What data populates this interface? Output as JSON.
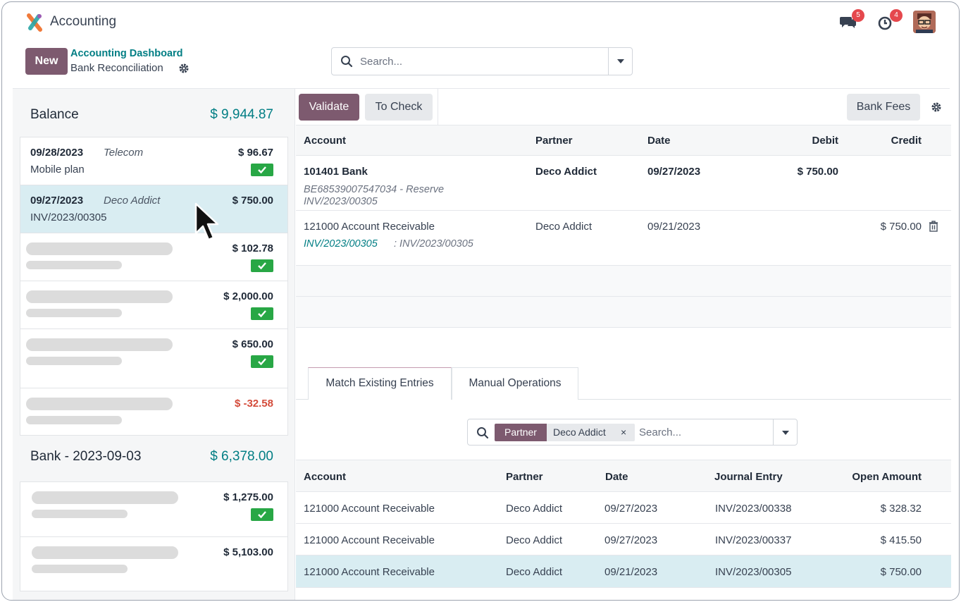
{
  "app": {
    "name": "Accounting",
    "messages_count": "5",
    "activities_count": "4",
    "accent_color": "#7d5a6f",
    "link_color": "#017e84"
  },
  "control_panel": {
    "new_label": "New",
    "breadcrumb_parent": "Accounting Dashboard",
    "breadcrumb_current": "Bank Reconciliation",
    "search_placeholder": "Search..."
  },
  "left": {
    "groups": [
      {
        "title": "Balance",
        "amount": "$ 9,944.87",
        "lines": [
          {
            "date": "09/28/2023",
            "partner": "Telecom",
            "label": "Mobile plan",
            "amount": "$ 96.67",
            "checked": true,
            "selected": false
          },
          {
            "date": "09/27/2023",
            "partner": "Deco Addict",
            "label": "INV/2023/00305",
            "amount": "$ 750.00",
            "checked": false,
            "selected": true
          },
          {
            "amount": "$ 102.78",
            "checked": true,
            "placeholder": true
          },
          {
            "amount": "$ 2,000.00",
            "checked": true,
            "placeholder": true
          },
          {
            "amount": "$ 650.00",
            "checked": true,
            "placeholder": true
          },
          {
            "amount": "$ -32.58",
            "checked": false,
            "placeholder": true,
            "negative": true
          }
        ]
      },
      {
        "title": "Bank - 2023-09-03",
        "amount": "$ 6,378.00",
        "lines": [
          {
            "amount": "$ 1,275.00",
            "checked": true,
            "placeholder": true
          },
          {
            "amount": "$ 5,103.00",
            "checked": false,
            "placeholder": true
          }
        ]
      }
    ]
  },
  "right": {
    "buttons": {
      "validate": "Validate",
      "to_check": "To Check",
      "bank_fees": "Bank Fees"
    },
    "entries_headers": {
      "account": "Account",
      "partner": "Partner",
      "date": "Date",
      "debit": "Debit",
      "credit": "Credit"
    },
    "entries": [
      {
        "account": "101401 Bank",
        "partner": "Deco Addict",
        "date": "09/27/2023",
        "debit": "$ 750.00",
        "credit": "",
        "sub1": "BE68539007547034 - Reserve",
        "sub2": "INV/2023/00305"
      },
      {
        "account": "121000 Account Receivable",
        "partner": "Deco Addict",
        "date": "09/21/2023",
        "debit": "",
        "credit": "$ 750.00",
        "ref_link": "INV/2023/00305",
        "ref_text": ": INV/2023/00305"
      }
    ],
    "tabs": [
      "Match Existing Entries",
      "Manual Operations"
    ],
    "match_search": {
      "facet_key": "Partner",
      "facet_value": "Deco Addict",
      "remove": "×",
      "placeholder": "Search..."
    },
    "match_headers": {
      "account": "Account",
      "partner": "Partner",
      "date": "Date",
      "journal_entry": "Journal Entry",
      "open_amount": "Open Amount"
    },
    "match_rows": [
      {
        "account": "121000 Account Receivable",
        "partner": "Deco Addict",
        "date": "09/27/2023",
        "journal_entry": "INV/2023/00338",
        "open_amount": "$ 328.32"
      },
      {
        "account": "121000 Account Receivable",
        "partner": "Deco Addict",
        "date": "09/27/2023",
        "journal_entry": "INV/2023/00337",
        "open_amount": "$ 415.50"
      },
      {
        "account": "121000 Account Receivable",
        "partner": "Deco Addict",
        "date": "09/21/2023",
        "journal_entry": "INV/2023/00305",
        "open_amount": "$ 750.00"
      }
    ]
  }
}
